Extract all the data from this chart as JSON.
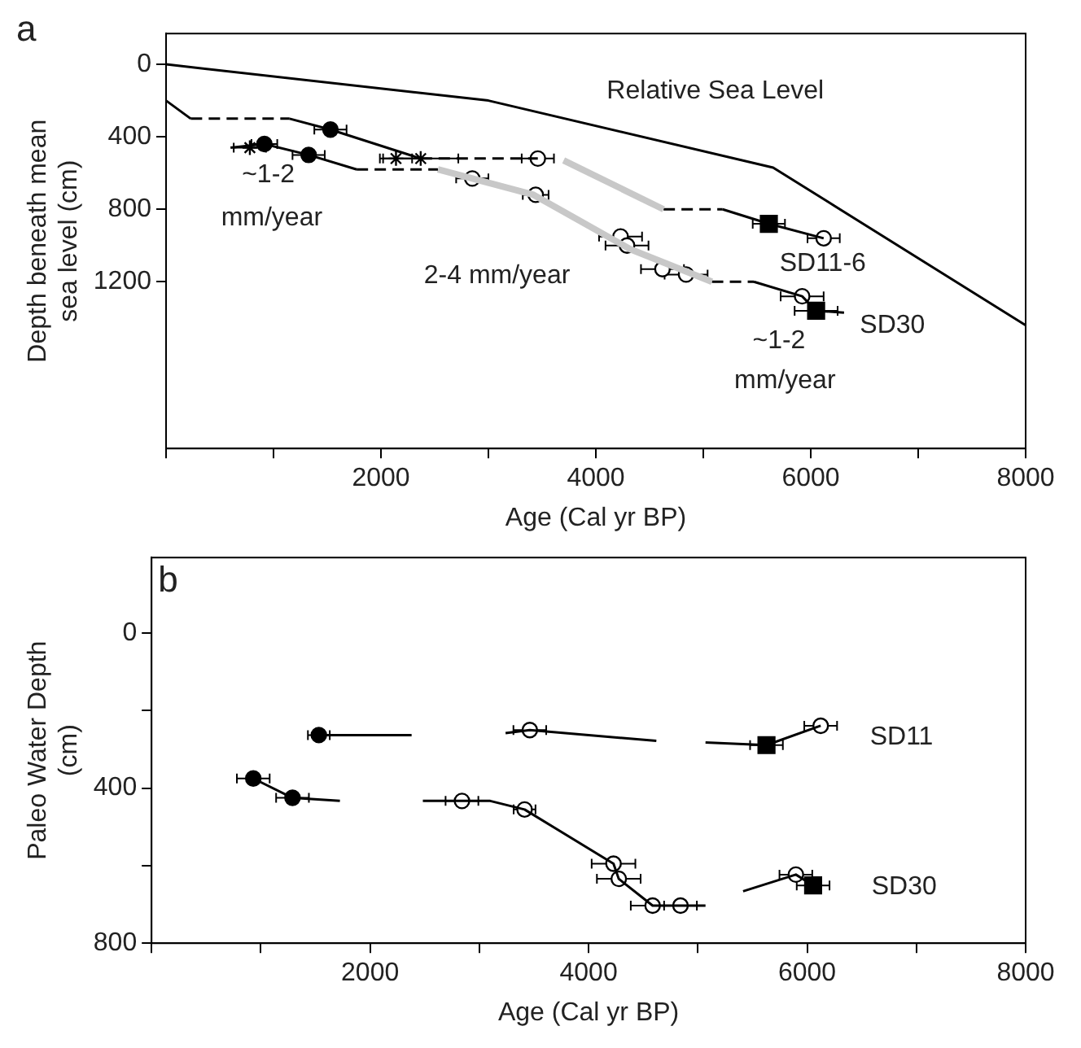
{
  "chart_data": [
    {
      "type": "line",
      "title": "a",
      "xlabel": "Age (Cal yr BP)",
      "ylabel": "Depth beneath mean sea level (cm)",
      "xlim": [
        0,
        8000
      ],
      "xticks": [
        {
          "value": 0,
          "label": null
        },
        {
          "value": 1000,
          "label": null
        },
        2000,
        {
          "value": 3000,
          "label": null
        },
        4000,
        {
          "value": 5000,
          "label": null
        },
        6000,
        {
          "value": 7000,
          "label": null
        },
        8000
      ],
      "ylim": [
        2120,
        -170
      ],
      "yticks": [
        0,
        400,
        800,
        1200
      ],
      "legend": false,
      "series": [
        {
          "color": "#000000",
          "marker": "none",
          "line_style": "solid",
          "x": [
            0,
            3000,
            5650,
            8000
          ],
          "values": [
            0,
            200,
            570,
            1440
          ]
        },
        {
          "color": "#000000",
          "marker": "none",
          "line_style": "solid",
          "x": [
            0,
            230
          ],
          "values": [
            200,
            300
          ]
        },
        {
          "color": "#000000",
          "marker": "none",
          "line_style": "dashed",
          "x": [
            230,
            1150
          ],
          "values": [
            300,
            300
          ]
        },
        {
          "color": "#000000",
          "marker": "none",
          "line_style": "solid",
          "x": [
            1150,
            1530,
            2370
          ],
          "values": [
            300,
            360,
            520
          ]
        },
        {
          "color": "#000000",
          "marker": "none",
          "line_style": "dashed",
          "x": [
            2370,
            3460
          ],
          "values": [
            520,
            520
          ]
        },
        {
          "color": "#c8c8c8",
          "marker": "none",
          "line_style": "solid",
          "x": [
            3700,
            4630
          ],
          "values": [
            530,
            800
          ]
        },
        {
          "color": "#000000",
          "marker": "none",
          "line_style": "dashed",
          "x": [
            4630,
            5180
          ],
          "values": [
            800,
            800
          ]
        },
        {
          "color": "#000000",
          "marker": "none",
          "line_style": "solid",
          "x": [
            5180,
            5610,
            6120
          ],
          "values": [
            800,
            880,
            960
          ]
        },
        {
          "color": "#000000",
          "marker": "none",
          "line_style": "solid",
          "x": [
            600,
            915,
            1327,
            1774
          ],
          "values": [
            460,
            440,
            500,
            580
          ]
        },
        {
          "color": "#000000",
          "marker": "none",
          "line_style": "dashed",
          "x": [
            1774,
            2530
          ],
          "values": [
            580,
            580
          ]
        },
        {
          "color": "#c8c8c8",
          "marker": "none",
          "line_style": "solid",
          "x": [
            2530,
            3420,
            4320,
            5080
          ],
          "values": [
            580,
            720,
            1020,
            1200
          ]
        },
        {
          "color": "#000000",
          "marker": "none",
          "line_style": "dashed",
          "x": [
            5080,
            5470
          ],
          "values": [
            1200,
            1200
          ]
        },
        {
          "color": "#000000",
          "marker": "none",
          "line_style": "solid",
          "x": [
            5470,
            5920,
            6050,
            6310
          ],
          "values": [
            1200,
            1280,
            1360,
            1370
          ]
        },
        {
          "type": "scatter",
          "color": "#000000",
          "marker": "circle",
          "x": [
            915,
            1327,
            1530
          ],
          "values": [
            440,
            500,
            360
          ],
          "xerrors": [
            120,
            150,
            150
          ]
        },
        {
          "type": "scatter",
          "color": "#000000",
          "marker": "cross",
          "x": [
            780,
            2140,
            2370
          ],
          "values": [
            460,
            520,
            520
          ],
          "xerrors": [
            150,
            150,
            350
          ]
        },
        {
          "type": "scatter",
          "color": "#ffffff",
          "marker": "circle",
          "x": [
            3460,
            2850,
            3440,
            4230,
            4290,
            4620,
            4840,
            5920,
            6120
          ],
          "values": [
            520,
            630,
            720,
            950,
            1000,
            1130,
            1160,
            1280,
            960
          ],
          "xerrors": [
            150,
            150,
            120,
            200,
            200,
            200,
            200,
            200,
            150
          ]
        },
        {
          "type": "scatter",
          "color": "#000000",
          "marker": "square",
          "x": [
            5610,
            6050
          ],
          "values": [
            880,
            1360
          ],
          "xerrors": [
            150,
            200
          ]
        }
      ],
      "annotations": [
        "Relative Sea Level",
        "~1-2",
        "mm/year",
        "2-4 mm/year",
        "SD11-6",
        "SD30",
        "~1-2",
        "mm/year"
      ]
    },
    {
      "type": "line",
      "title": "b",
      "xlabel": "Age (Cal yr BP)",
      "ylabel": "Paleo Water Depth (cm)",
      "xlim": [
        0,
        8000
      ],
      "xticks": [
        {
          "value": 0,
          "label": null
        },
        {
          "value": 1000,
          "label": null
        },
        2000,
        {
          "value": 3000,
          "label": null
        },
        4000,
        {
          "value": 5000,
          "label": null
        },
        6000,
        {
          "value": 7000,
          "label": null
        },
        8000
      ],
      "ylim": [
        800,
        -195
      ],
      "yticks": [
        0,
        {
          "value": 200,
          "label": null
        },
        400,
        {
          "value": 600,
          "label": null
        },
        800
      ],
      "legend": false,
      "series": [
        {
          "color": "#000000",
          "marker": "none",
          "line_style": "solid",
          "x": [
            1531,
            2380
          ],
          "values": [
            263,
            263
          ]
        },
        {
          "color": "#000000",
          "marker": "none",
          "line_style": "solid",
          "x": [
            3240,
            3462,
            4620
          ],
          "values": [
            258,
            250,
            278
          ]
        },
        {
          "color": "#000000",
          "marker": "none",
          "line_style": "solid",
          "x": [
            5070,
            5628,
            6124
          ],
          "values": [
            282,
            289,
            239
          ]
        },
        {
          "color": "#000000",
          "marker": "none",
          "line_style": "solid",
          "x": [
            931,
            1290,
            1724
          ],
          "values": [
            375,
            425,
            433
          ]
        },
        {
          "color": "#000000",
          "marker": "none",
          "line_style": "solid",
          "x": [
            2483,
            2841,
            3100,
            3414,
            4228,
            4276,
            4586,
            4841,
            5070
          ],
          "values": [
            433,
            433,
            433,
            455,
            595,
            634,
            703,
            703,
            703
          ]
        },
        {
          "color": "#000000",
          "marker": "none",
          "line_style": "solid",
          "x": [
            5414,
            5897,
            6055
          ],
          "values": [
            666,
            623,
            651
          ]
        },
        {
          "type": "scatter",
          "color": "#000000",
          "marker": "circle",
          "x": [
            1531,
            931,
            1290
          ],
          "values": [
            263,
            375,
            425
          ],
          "xerrors": [
            100,
            150,
            150
          ]
        },
        {
          "type": "scatter",
          "color": "#ffffff",
          "marker": "circle",
          "x": [
            3462,
            6124,
            2841,
            3414,
            4228,
            4276,
            4586,
            4841,
            5897
          ],
          "values": [
            250,
            239,
            433,
            455,
            595,
            634,
            703,
            703,
            623
          ],
          "xerrors": [
            150,
            150,
            150,
            100,
            200,
            200,
            200,
            150,
            150
          ]
        },
        {
          "type": "scatter",
          "color": "#000000",
          "marker": "square",
          "x": [
            5628,
            6055
          ],
          "values": [
            289,
            651
          ],
          "xerrors": [
            150,
            150
          ]
        }
      ],
      "annotations": [
        "SD11",
        "SD30"
      ]
    }
  ]
}
